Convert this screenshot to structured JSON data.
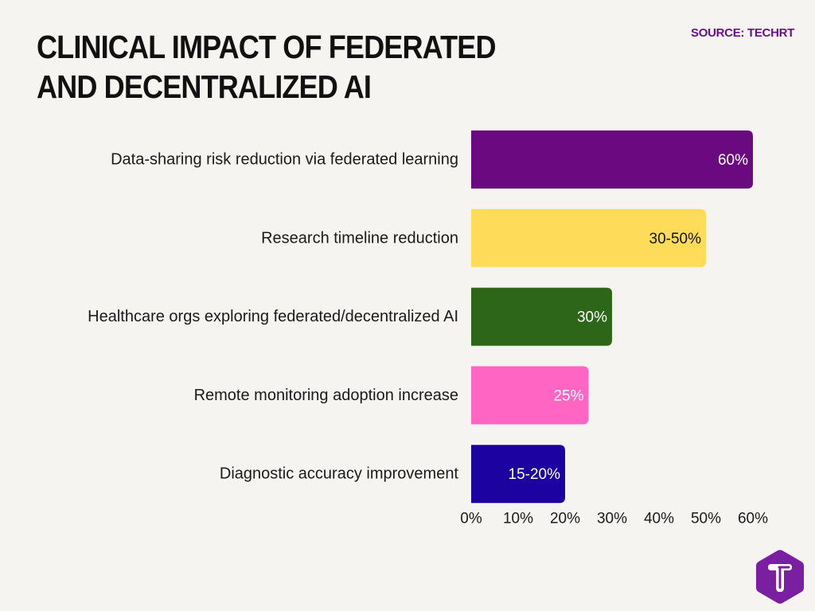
{
  "title": "CLINICAL IMPACT OF FEDERATED AND DECENTRALIZED AI",
  "source": "SOURCE: TECHRT",
  "logo": {
    "icon": "techrt-t-logo-icon",
    "color": "#7b1fa2",
    "letter": "T"
  },
  "chart_data": {
    "type": "bar",
    "orientation": "horizontal",
    "title": "CLINICAL IMPACT OF FEDERATED AND DECENTRALIZED AI",
    "xlabel": "",
    "ylabel": "",
    "xlim": [
      0,
      60
    ],
    "x_ticks": [
      "0%",
      "10%",
      "20%",
      "30%",
      "40%",
      "50%",
      "60%"
    ],
    "grid": false,
    "legend": "none",
    "categories": [
      "Data-sharing risk reduction via federated learning",
      "Research timeline reduction",
      "Healthcare orgs exploring federated/decentralized AI",
      "Remote monitoring adoption increase",
      "Diagnostic accuracy improvement"
    ],
    "values": [
      60,
      50,
      30,
      25,
      20
    ],
    "labels": [
      "60%",
      "30-50%",
      "30%",
      "25%",
      "15-20%"
    ],
    "colors": [
      "#6b0a80",
      "#fedc5a",
      "#2d6519",
      "#ff66c4",
      "#1c02a0"
    ],
    "label_colors": [
      "#ffffff",
      "#111111",
      "#ffffff",
      "#ffffff",
      "#ffffff"
    ]
  }
}
